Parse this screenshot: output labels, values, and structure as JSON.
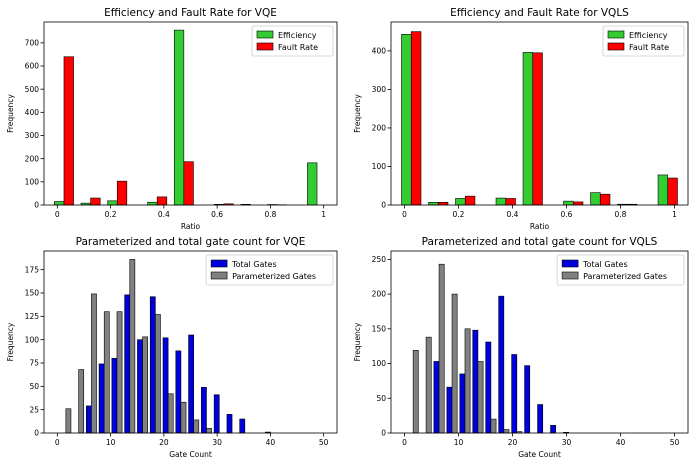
{
  "chart_data": [
    {
      "type": "bar",
      "title": "Efficiency and Fault Rate for VQE",
      "xlabel": "Ratio",
      "ylabel": "Frequency",
      "xlim": [
        -0.05,
        1.05
      ],
      "ylim": [
        0,
        790
      ],
      "xticks": [
        0.0,
        0.2,
        0.4,
        0.6,
        0.8,
        1.0
      ],
      "yticks": [
        0,
        100,
        200,
        300,
        400,
        500,
        600,
        700
      ],
      "bin_centers": [
        0.025,
        0.125,
        0.225,
        0.375,
        0.475,
        0.625,
        0.725,
        0.825,
        0.975
      ],
      "legend_position": "top-right",
      "series": [
        {
          "name": "Efficiency",
          "color": "#33cc33",
          "values": [
            15,
            8,
            18,
            12,
            755,
            3,
            3,
            2,
            182
          ]
        },
        {
          "name": "Fault Rate",
          "color": "#ff0000",
          "values": [
            640,
            30,
            103,
            35,
            187,
            5,
            0,
            1,
            0
          ]
        }
      ]
    },
    {
      "type": "bar",
      "title": "Efficiency and Fault Rate for VQLS",
      "xlabel": "Ratio",
      "ylabel": "Frequency",
      "xlim": [
        -0.05,
        1.05
      ],
      "ylim": [
        0,
        475
      ],
      "xticks": [
        0.0,
        0.2,
        0.4,
        0.6,
        0.8,
        1.0
      ],
      "yticks": [
        0,
        100,
        200,
        300,
        400
      ],
      "bin_centers": [
        0.025,
        0.125,
        0.225,
        0.375,
        0.475,
        0.625,
        0.725,
        0.825,
        0.975
      ],
      "legend_position": "top-right",
      "series": [
        {
          "name": "Efficiency",
          "color": "#33cc33",
          "values": [
            443,
            7,
            17,
            18,
            396,
            10,
            32,
            2,
            78
          ]
        },
        {
          "name": "Fault Rate",
          "color": "#ff0000",
          "values": [
            450,
            7,
            23,
            17,
            395,
            8,
            28,
            2,
            70
          ]
        }
      ]
    },
    {
      "type": "bar",
      "title": "Parameterized and total gate count for VQE",
      "xlabel": "Gate Count",
      "ylabel": "Frequency",
      "xlim": [
        -2.5,
        52.5
      ],
      "ylim": [
        0,
        195
      ],
      "xticks": [
        0,
        10,
        20,
        30,
        40,
        50
      ],
      "yticks": [
        0,
        25,
        50,
        75,
        100,
        125,
        150,
        175
      ],
      "bin_centers": [
        1.6,
        4.0,
        6.4,
        8.8,
        11.2,
        13.6,
        16.0,
        18.4,
        20.8,
        23.2,
        25.6,
        28.0,
        30.4,
        32.8,
        35.2,
        37.6,
        40.0
      ],
      "legend_position": "top-right",
      "series": [
        {
          "name": "Total Gates",
          "color": "#0000dd",
          "values": [
            0,
            0,
            29,
            74,
            80,
            148,
            100,
            146,
            102,
            88,
            105,
            49,
            41,
            20,
            15,
            0,
            1
          ]
        },
        {
          "name": "Parameterized Gates",
          "color": "#808080",
          "values": [
            26,
            68,
            149,
            130,
            130,
            186,
            103,
            127,
            42,
            33,
            14,
            5,
            0,
            0,
            0,
            0,
            0
          ]
        }
      ]
    },
    {
      "type": "bar",
      "title": "Parameterized and total gate count for VQLS",
      "xlabel": "Gate Count",
      "ylabel": "Frequency",
      "xlim": [
        -2.5,
        52.5
      ],
      "ylim": [
        0,
        262
      ],
      "xticks": [
        0,
        10,
        20,
        30,
        40,
        50
      ],
      "yticks": [
        0,
        50,
        100,
        150,
        200,
        250
      ],
      "bin_centers": [
        1.6,
        4.0,
        6.4,
        8.8,
        11.2,
        13.6,
        16.0,
        18.4,
        20.8,
        23.2,
        25.6,
        28.0,
        30.4
      ],
      "legend_position": "top-right",
      "series": [
        {
          "name": "Total Gates",
          "color": "#0000dd",
          "values": [
            0,
            0,
            103,
            66,
            85,
            148,
            131,
            197,
            113,
            97,
            41,
            11,
            1
          ]
        },
        {
          "name": "Parameterized Gates",
          "color": "#808080",
          "values": [
            119,
            138,
            243,
            200,
            150,
            103,
            20,
            5,
            2,
            0,
            0,
            0,
            0
          ]
        }
      ]
    }
  ]
}
